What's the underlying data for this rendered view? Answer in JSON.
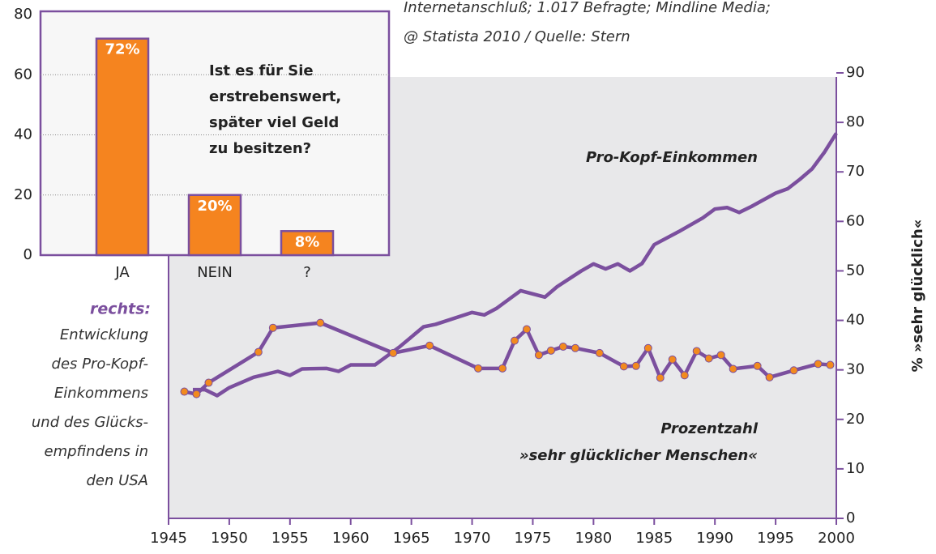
{
  "chart_data": [
    {
      "type": "bar",
      "title_lines": [
        "Ist es für Sie",
        "erstrebenswert,",
        "später viel Geld",
        "zu besitzen?"
      ],
      "categories": [
        "JA",
        "NEIN",
        "?"
      ],
      "values": [
        72,
        20,
        8
      ],
      "value_labels": [
        "72%",
        "20%",
        "8%"
      ],
      "color": "#f5841f",
      "edge_color": "#7b4f9e",
      "ylim": [
        0,
        80
      ],
      "yticks": [
        0,
        20,
        40,
        60,
        80
      ],
      "grid": true
    },
    {
      "type": "line",
      "source_lines": [
        "Internetanschluß; 1.017 Befragte; Mindline Media;",
        "@ Statista 2010 / Quelle: Stern"
      ],
      "note_heading": "rechts:",
      "note_lines": [
        "Entwicklung",
        "des Pro-Kopf-",
        "Einkommens",
        "und des Glücks-",
        "empfindens in",
        "den USA"
      ],
      "y_label": "% »sehr glücklich«",
      "xlim": [
        1945,
        2000
      ],
      "xticks": [
        1945,
        1950,
        1955,
        1960,
        1965,
        1970,
        1975,
        1980,
        1985,
        1990,
        1995,
        2000
      ],
      "ylim": [
        0,
        90
      ],
      "yticks": [
        0,
        10,
        20,
        30,
        40,
        50,
        60,
        70,
        80,
        90
      ],
      "series": [
        {
          "name": "Pro-Kopf-Einkommen",
          "color": "#7b4f9e",
          "markers": false,
          "x": [
            1947,
            1948,
            1949,
            1950,
            1952,
            1954,
            1955,
            1956,
            1958,
            1959,
            1960,
            1962,
            1964,
            1966,
            1967,
            1970,
            1971,
            1972,
            1974,
            1976,
            1977,
            1979,
            1980,
            1981,
            1982,
            1983,
            1984,
            1985,
            1987,
            1989,
            1990,
            1991,
            1992,
            1993,
            1995,
            1996,
            1997,
            1998,
            1999,
            2000
          ],
          "values": [
            26,
            26,
            24.8,
            26.4,
            28.5,
            29.7,
            28.9,
            30.2,
            30.3,
            29.7,
            31,
            31,
            34.6,
            38.7,
            39.2,
            41.6,
            41.1,
            42.4,
            46,
            44.7,
            46.8,
            50,
            51.4,
            50.4,
            51.4,
            50,
            51.5,
            55.3,
            57.9,
            60.7,
            62.5,
            62.8,
            61.8,
            63,
            65.7,
            66.6,
            68.5,
            70.6,
            73.9,
            77.8
          ]
        },
        {
          "label_lines": [
            "Prozentzahl",
            "»sehr glücklicher Menschen«"
          ],
          "color": "#7b4f9e",
          "marker_color": "#f28a1e",
          "markers": true,
          "x": [
            1946.3,
            1947.3,
            1948.3,
            1952.4,
            1953.6,
            1957.5,
            1963.5,
            1966.5,
            1970.5,
            1972.5,
            1973.5,
            1974.5,
            1975.5,
            1976.5,
            1977.5,
            1978.5,
            1980.5,
            1982.5,
            1983.5,
            1984.5,
            1985.5,
            1986.5,
            1987.5,
            1988.5,
            1989.5,
            1990.5,
            1991.5,
            1993.5,
            1994.5,
            1996.5,
            1998.5,
            1999.5
          ],
          "values": [
            25.6,
            25.1,
            27.4,
            33.6,
            38.5,
            39.5,
            33.4,
            34.9,
            30.3,
            30.3,
            35.9,
            38.2,
            33,
            33.9,
            34.7,
            34.4,
            33.4,
            30.7,
            30.8,
            34.4,
            28.4,
            32.1,
            28.9,
            33.8,
            32.3,
            33,
            30.2,
            30.8,
            28.5,
            29.9,
            31.2,
            31
          ]
        }
      ]
    }
  ]
}
